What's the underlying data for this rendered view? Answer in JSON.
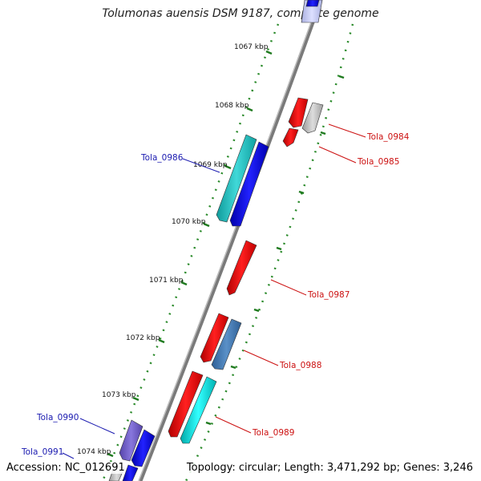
{
  "title": "Tolumonas auensis DSM 9187, complete genome",
  "footer": {
    "accession": "Accession: NC_012691",
    "topology": "Topology: circular; Length: 3,471,292 bp; Genes: 3,246"
  },
  "colors": {
    "backbone": "#888888",
    "tick": "#1f7a1f",
    "forward_label": "#1a1ab0",
    "reverse_label": "#cc1111"
  },
  "scale_ticks": [
    "1067 kbp",
    "1068 kbp",
    "1069 kbp",
    "1070 kbp",
    "1071 kbp",
    "1072 kbp",
    "1073 kbp",
    "1074 kbp"
  ],
  "genes": [
    {
      "label": "Tola_0984",
      "strand": "reverse",
      "color": "#ff0000"
    },
    {
      "label": "Tola_0985",
      "strand": "reverse",
      "color": "#ff0000"
    },
    {
      "label": "Tola_0986",
      "strand": "forward",
      "color": "#1111dd"
    },
    {
      "label": "Tola_0987",
      "strand": "reverse",
      "color": "#ff0000"
    },
    {
      "label": "Tola_0988",
      "strand": "reverse",
      "color": "#ff0000"
    },
    {
      "label": "Tola_0989",
      "strand": "reverse",
      "color": "#ff0000"
    },
    {
      "label": "Tola_0990",
      "strand": "forward",
      "color": "#7766cc"
    },
    {
      "label": "Tola_0991",
      "strand": "forward",
      "color": "#1111dd"
    }
  ]
}
